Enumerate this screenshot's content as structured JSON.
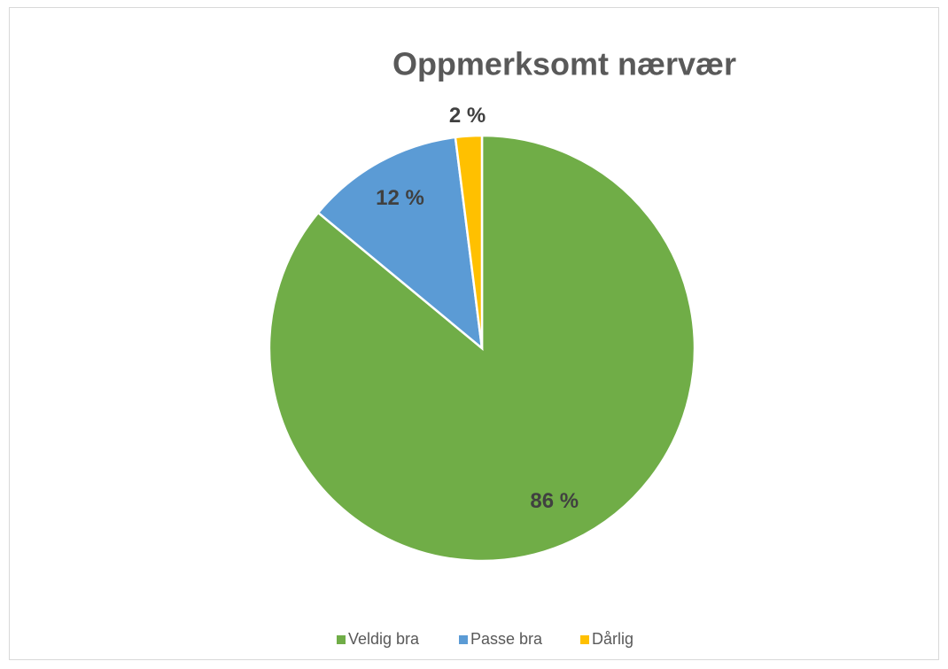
{
  "chart_data": {
    "type": "pie",
    "title": "Oppmerksomt nærvær",
    "categories": [
      "Veldig bra",
      "Passe bra",
      "Dårlig"
    ],
    "values": [
      86,
      12,
      2
    ],
    "value_labels": [
      "86 %",
      "12 %",
      "2 %"
    ],
    "colors": [
      "#70ad47",
      "#5b9bd5",
      "#ffc000"
    ],
    "legend": "bottom"
  }
}
